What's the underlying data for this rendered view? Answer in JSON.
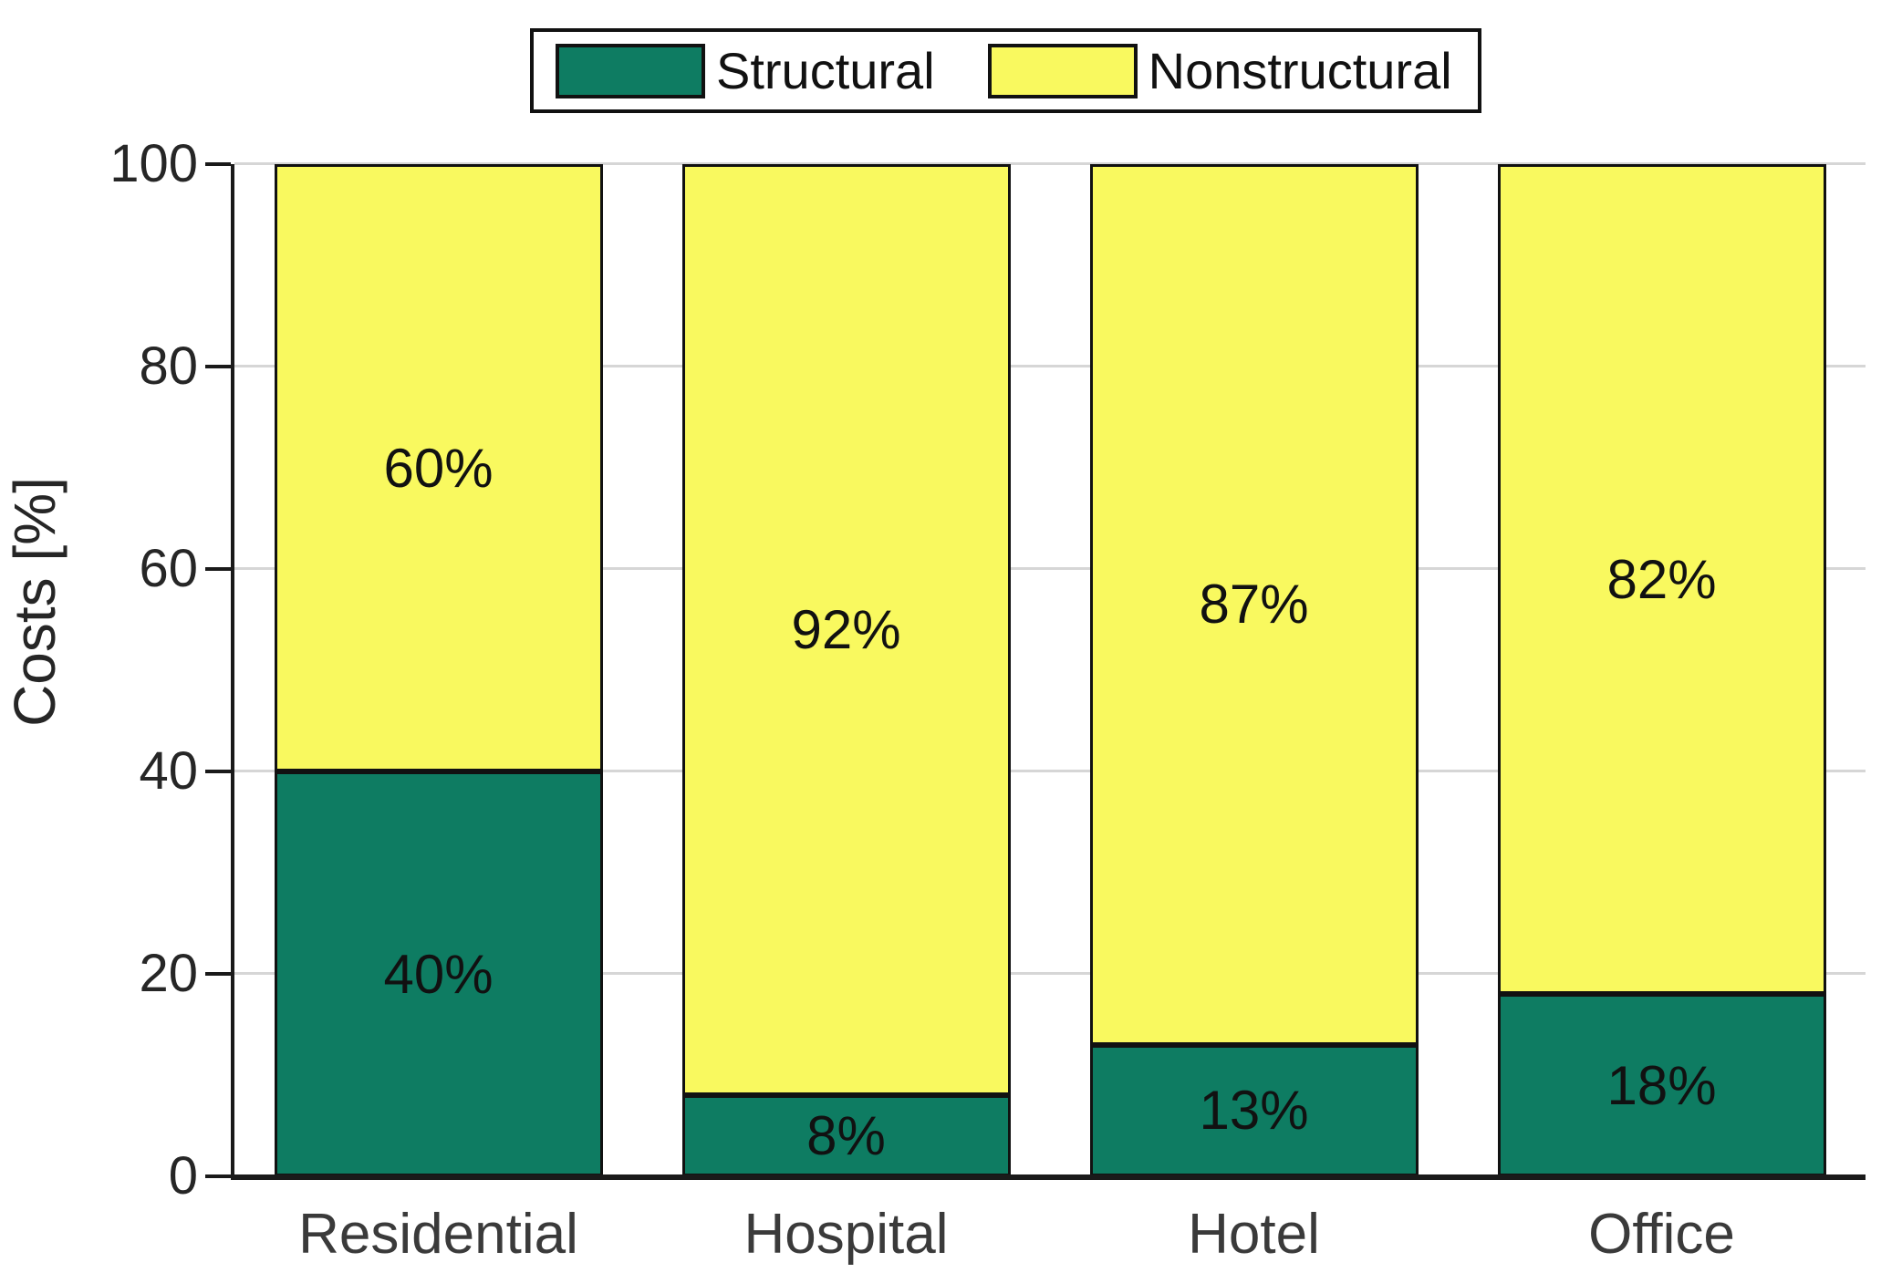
{
  "legend": {
    "items": [
      {
        "label": "Structural",
        "color": "#0E7C62"
      },
      {
        "label": "Nonstructural",
        "color": "#F9F95F"
      }
    ]
  },
  "axes": {
    "ylabel": "Costs [%]",
    "yticks": [
      "0",
      "20",
      "40",
      "60",
      "80",
      "100"
    ],
    "ylim": [
      0,
      100
    ]
  },
  "chart_data": {
    "type": "bar",
    "stacked": true,
    "categories": [
      "Residential",
      "Hospital",
      "Hotel",
      "Office"
    ],
    "series": [
      {
        "name": "Structural",
        "color": "#0E7C62",
        "values": [
          40,
          8,
          13,
          18
        ],
        "labels": [
          "40%",
          "8%",
          "13%",
          "18%"
        ]
      },
      {
        "name": "Nonstructural",
        "color": "#F9F95F",
        "values": [
          60,
          92,
          87,
          82
        ],
        "labels": [
          "60%",
          "92%",
          "87%",
          "82%"
        ]
      }
    ],
    "title": "",
    "xlabel": "",
    "ylabel": "Costs [%]",
    "ylim": [
      0,
      100
    ],
    "grid": true,
    "legend_position": "top"
  },
  "colors": {
    "structural": "#0E7C62",
    "nonstructural": "#F9F95F",
    "grid": "#D6D6D6",
    "axis": "#1A1A1A",
    "text": "#262626"
  }
}
